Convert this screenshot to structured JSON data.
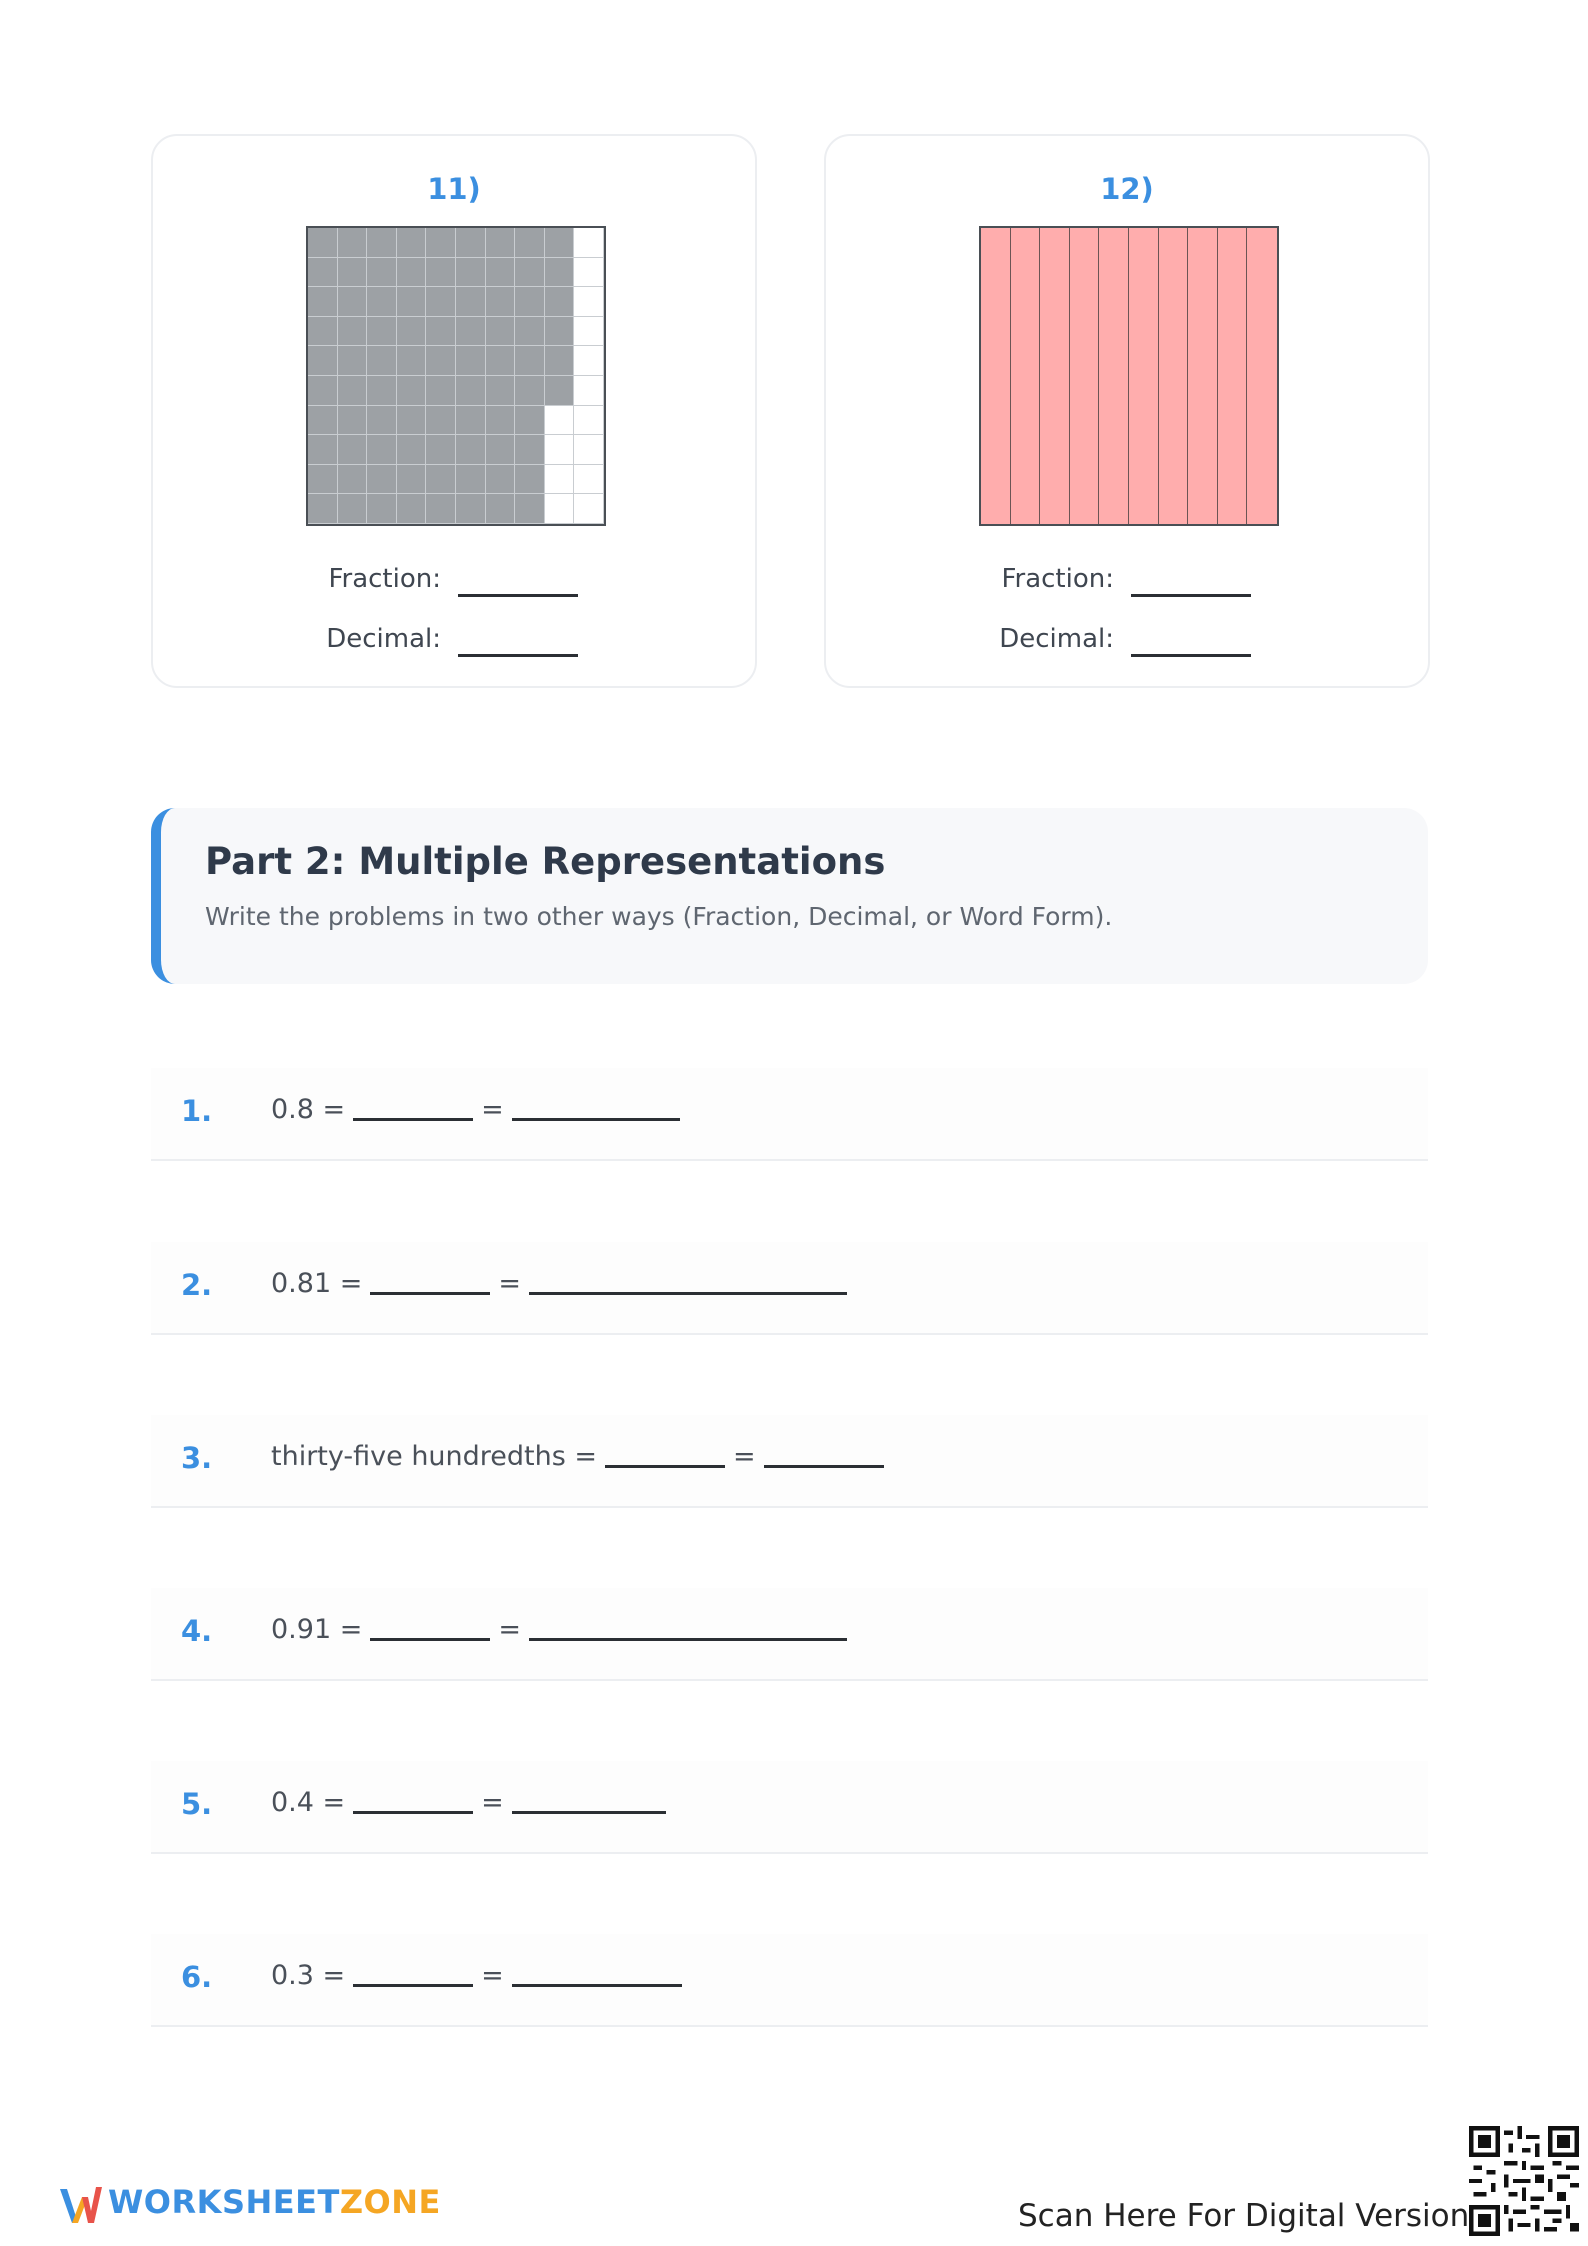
{
  "cards": [
    {
      "title": "11)",
      "model": "hundredths-grid",
      "shaded_hundredths": 86,
      "fraction_label": "Fraction:",
      "decimal_label": "Decimal:"
    },
    {
      "title": "12)",
      "model": "tenths-strips",
      "shaded_tenths": 10,
      "shade_color": "#ffadad",
      "fraction_label": "Fraction:",
      "decimal_label": "Decimal:"
    }
  ],
  "part2": {
    "title": "Part 2: Multiple Representations",
    "subtitle": "Write the problems in two other ways (Fraction, Decimal, or Word Form)."
  },
  "problems": [
    {
      "num": "1.",
      "prompt": "0.8 =",
      "eq": "="
    },
    {
      "num": "2.",
      "prompt": "0.81 =",
      "eq": "="
    },
    {
      "num": "3.",
      "prompt": "thirty-five hundredths =",
      "eq": "="
    },
    {
      "num": "4.",
      "prompt": "0.91 =",
      "eq": "="
    },
    {
      "num": "5.",
      "prompt": "0.4 =",
      "eq": "="
    },
    {
      "num": "6.",
      "prompt": "0.3 =",
      "eq": "="
    }
  ],
  "footer": {
    "logo_worksheet": "WORKSHEET",
    "logo_zone": "ZONE",
    "scan_text": "Scan Here For Digital Version"
  },
  "colors": {
    "accent": "#3b8fe0",
    "grid_shade": "#9da1a5",
    "logo_orange": "#f5a623"
  },
  "icons": [
    "worksheetzone-logo-icon",
    "qr-code-icon"
  ]
}
